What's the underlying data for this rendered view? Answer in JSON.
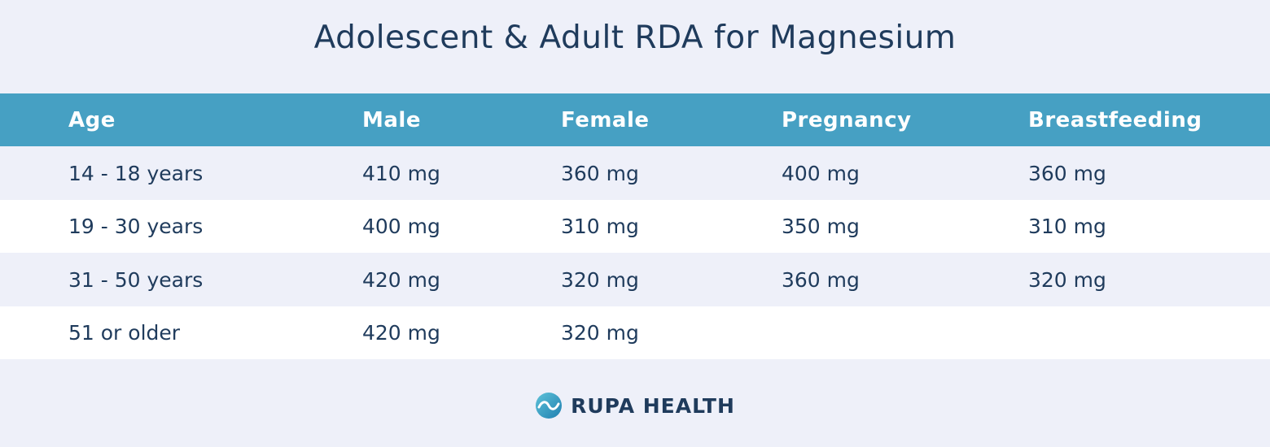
{
  "title": "Adolescent & Adult RDA for Magnesium",
  "table": {
    "headers": [
      "Age",
      "Male",
      "Female",
      "Pregnancy",
      "Breastfeeding"
    ],
    "rows": [
      [
        "14 - 18 years",
        "410 mg",
        "360 mg",
        "400 mg",
        "360 mg"
      ],
      [
        "19 - 30 years",
        "400 mg",
        "310 mg",
        "350 mg",
        "310 mg"
      ],
      [
        "31 - 50 years",
        "420 mg",
        "320 mg",
        "360 mg",
        "320 mg"
      ],
      [
        "51 or older",
        "420 mg",
        "320 mg",
        "",
        ""
      ]
    ]
  },
  "brand": {
    "name": "RUPA HEALTH",
    "logo_icon": "rupa-wave-logo-icon"
  },
  "colors": {
    "header_bg": "#46a0c3",
    "text": "#1f3b5c",
    "background": "#eef0f9",
    "row_alt": "#ffffff"
  }
}
